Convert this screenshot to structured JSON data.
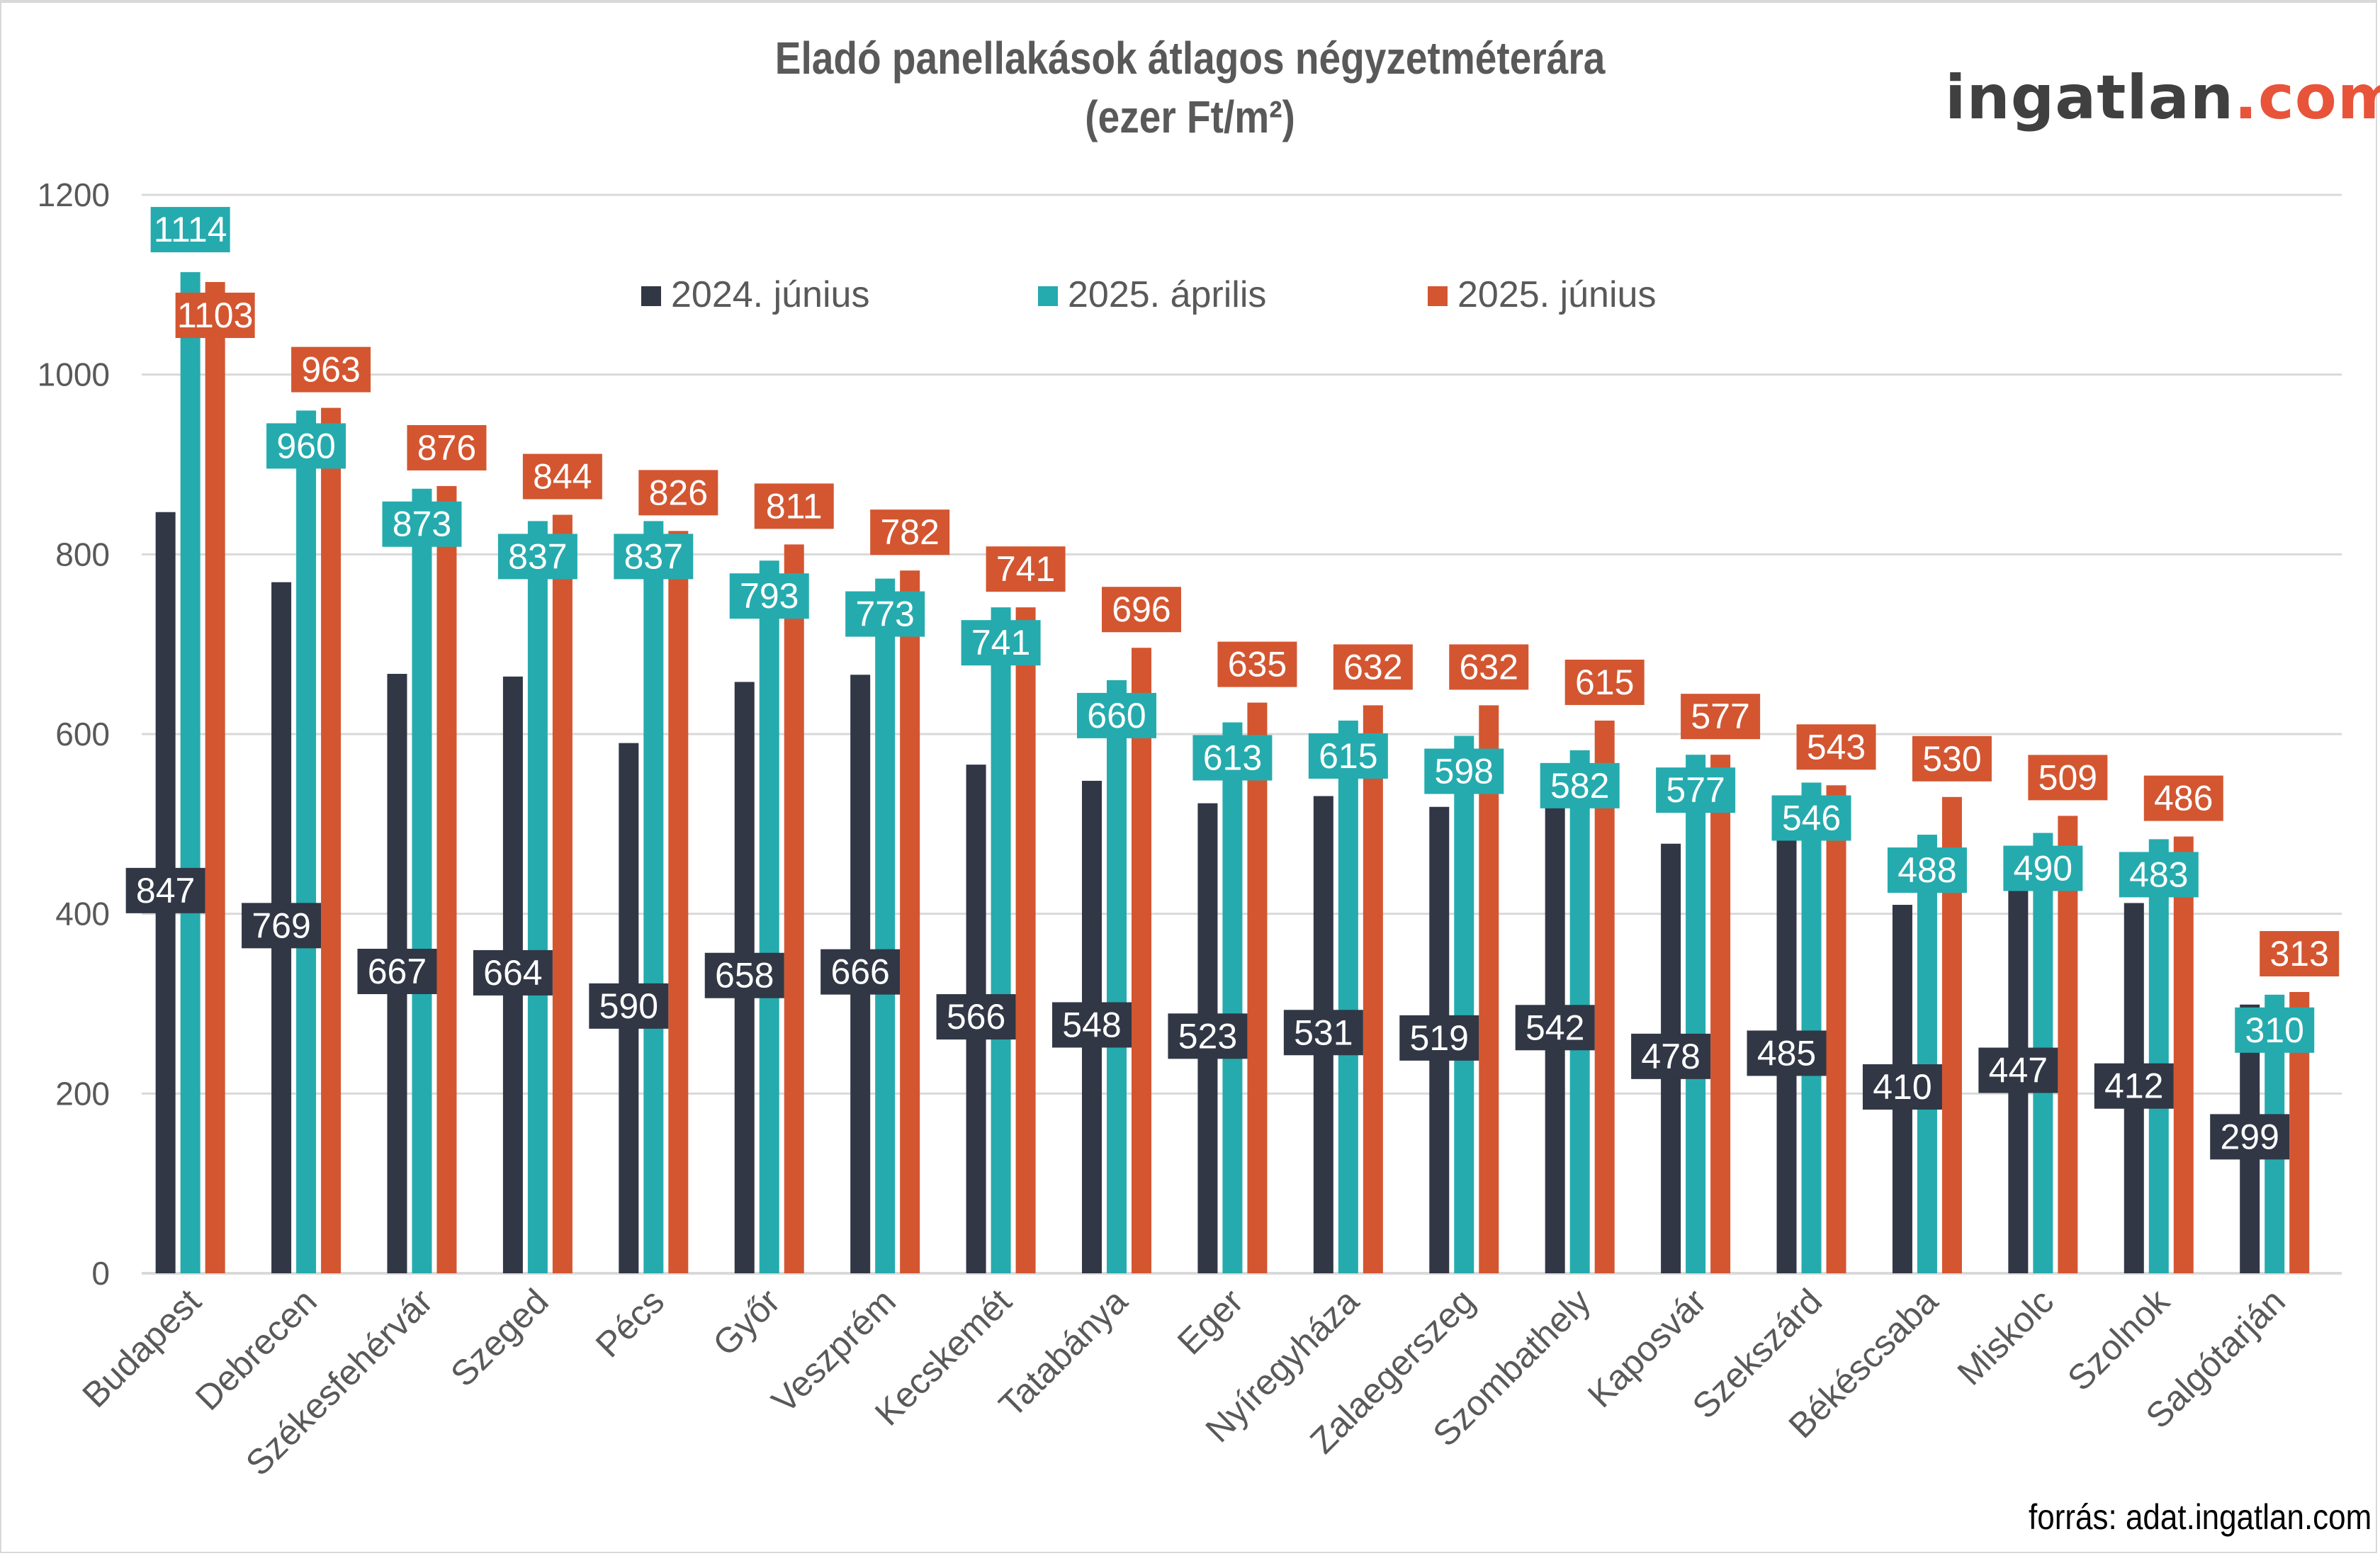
{
  "header": {
    "title_line1": "Eladó panellakások átlagos négyzetméterára",
    "title_line2": "(ezer Ft/m²)"
  },
  "logo": {
    "main": "ingatlan",
    "accent": ".com",
    "accent_color": "#e8543a",
    "main_color": "#404040"
  },
  "footer": {
    "source": "forrás: adat.ingatlan.com"
  },
  "chart_data": {
    "type": "bar",
    "title": "Eladó panellakások átlagos négyzetméterára (ezer Ft/m²)",
    "xlabel": "",
    "ylabel": "",
    "ylim": [
      0,
      1200
    ],
    "yticks": [
      0,
      200,
      400,
      600,
      800,
      1000,
      1200
    ],
    "grid": true,
    "legend_position": "top-center",
    "categories": [
      "Budapest",
      "Debrecen",
      "Székesfehérvár",
      "Szeged",
      "Pécs",
      "Győr",
      "Veszprém",
      "Kecskemét",
      "Tatabánya",
      "Eger",
      "Nyíregyháza",
      "Zalaegerszeg",
      "Szombathely",
      "Kaposvár",
      "Szekszárd",
      "Békéscsaba",
      "Miskolc",
      "Szolnok",
      "Salgótarján"
    ],
    "series": [
      {
        "name": "2024. június",
        "color": "#313745",
        "values": [
          847,
          769,
          667,
          664,
          590,
          658,
          666,
          566,
          548,
          523,
          531,
          519,
          542,
          478,
          485,
          410,
          447,
          412,
          299
        ]
      },
      {
        "name": "2025. április",
        "color": "#25abae",
        "values": [
          1114,
          960,
          873,
          837,
          837,
          793,
          773,
          741,
          660,
          613,
          615,
          598,
          582,
          577,
          546,
          488,
          490,
          483,
          310
        ]
      },
      {
        "name": "2025. június",
        "color": "#d35631",
        "values": [
          1103,
          963,
          876,
          844,
          826,
          811,
          782,
          741,
          696,
          635,
          632,
          632,
          615,
          577,
          543,
          530,
          509,
          486,
          313
        ]
      }
    ]
  }
}
